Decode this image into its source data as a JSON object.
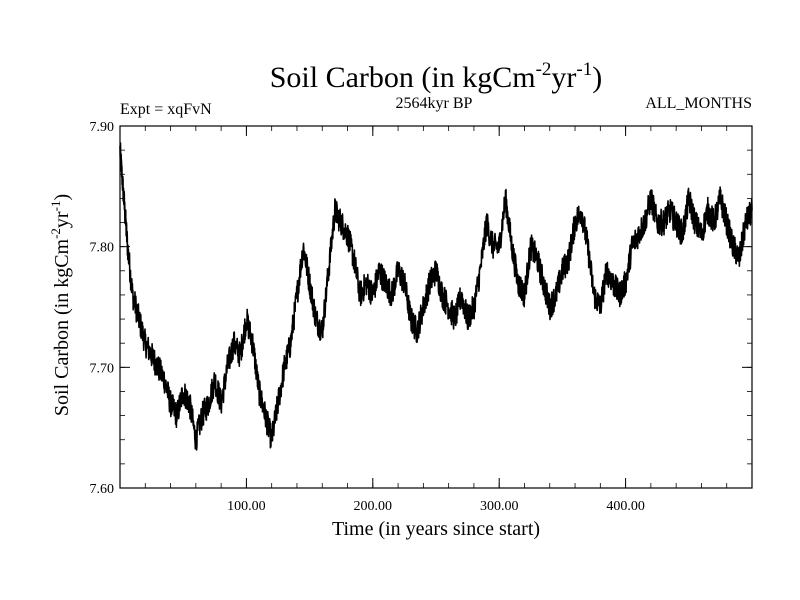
{
  "chart_data": {
    "type": "line",
    "title": {
      "main": "Soil Carbon (in kgCm",
      "sup1": "-2",
      "mid": "yr",
      "sup2": "-1",
      "end": ")"
    },
    "subtitle_left": "Expt = xqFvN",
    "subtitle_center": "2564kyr BP",
    "subtitle_right": "ALL_MONTHS",
    "xlabel": "Time (in years since start)",
    "ylabel": {
      "main": "Soil Carbon (in kgCm",
      "sup1": "-2",
      "mid": "yr",
      "sup2": "-1",
      "end": ")"
    },
    "xlim": [
      0,
      500
    ],
    "ylim": [
      7.6,
      7.9
    ],
    "x_ticks": [
      100,
      200,
      300,
      400
    ],
    "x_tick_labels": [
      "100.00",
      "200.00",
      "300.00",
      "400.00"
    ],
    "y_ticks": [
      7.6,
      7.7,
      7.8,
      7.9
    ],
    "y_tick_labels": [
      "7.60",
      "7.70",
      "7.80",
      "7.90"
    ],
    "series": [
      {
        "name": "Soil Carbon",
        "color": "#000000",
        "x": [
          0,
          3,
          6,
          10,
          15,
          20,
          25,
          30,
          35,
          40,
          45,
          50,
          55,
          60,
          65,
          70,
          75,
          80,
          85,
          90,
          95,
          100,
          105,
          110,
          115,
          120,
          125,
          130,
          135,
          140,
          145,
          150,
          155,
          160,
          165,
          170,
          175,
          180,
          185,
          190,
          195,
          200,
          205,
          210,
          215,
          220,
          225,
          230,
          235,
          240,
          245,
          250,
          255,
          260,
          265,
          270,
          275,
          280,
          285,
          290,
          295,
          300,
          305,
          310,
          315,
          320,
          325,
          330,
          335,
          340,
          345,
          350,
          355,
          360,
          365,
          370,
          375,
          380,
          385,
          390,
          395,
          400,
          405,
          410,
          415,
          420,
          425,
          430,
          435,
          440,
          445,
          450,
          455,
          460,
          465,
          470,
          475,
          480,
          485,
          490,
          495,
          500
        ],
        "y": [
          7.88,
          7.84,
          7.8,
          7.76,
          7.74,
          7.72,
          7.71,
          7.7,
          7.69,
          7.67,
          7.66,
          7.68,
          7.67,
          7.64,
          7.66,
          7.67,
          7.69,
          7.67,
          7.7,
          7.72,
          7.71,
          7.74,
          7.72,
          7.68,
          7.66,
          7.64,
          7.67,
          7.7,
          7.72,
          7.76,
          7.8,
          7.77,
          7.74,
          7.73,
          7.78,
          7.83,
          7.82,
          7.81,
          7.79,
          7.76,
          7.77,
          7.76,
          7.78,
          7.77,
          7.76,
          7.78,
          7.77,
          7.74,
          7.73,
          7.75,
          7.77,
          7.78,
          7.76,
          7.75,
          7.74,
          7.76,
          7.74,
          7.75,
          7.78,
          7.82,
          7.8,
          7.8,
          7.84,
          7.8,
          7.77,
          7.76,
          7.8,
          7.79,
          7.77,
          7.75,
          7.76,
          7.78,
          7.79,
          7.82,
          7.83,
          7.8,
          7.76,
          7.75,
          7.78,
          7.77,
          7.76,
          7.77,
          7.8,
          7.81,
          7.82,
          7.84,
          7.82,
          7.82,
          7.83,
          7.82,
          7.81,
          7.84,
          7.82,
          7.81,
          7.83,
          7.82,
          7.84,
          7.82,
          7.8,
          7.79,
          7.82,
          7.83
        ]
      }
    ]
  }
}
